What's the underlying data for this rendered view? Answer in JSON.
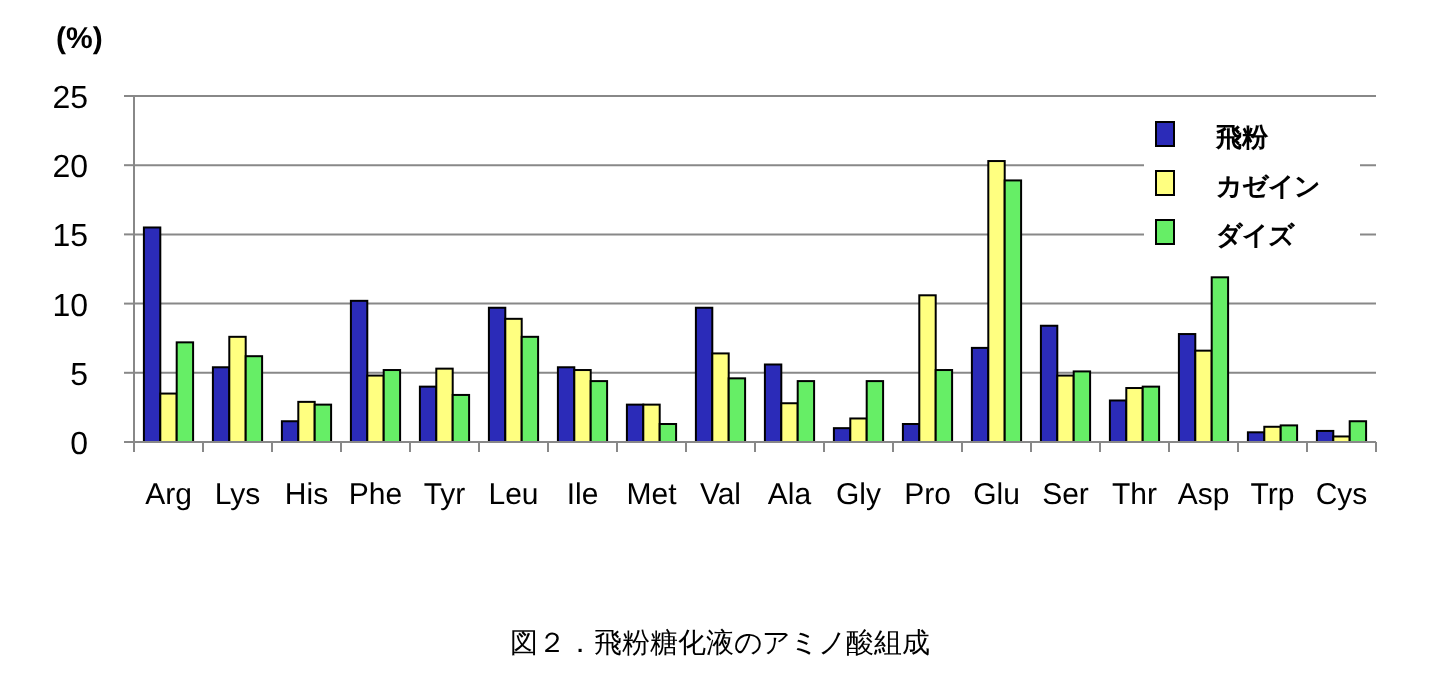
{
  "chart_data": {
    "type": "bar",
    "ylabel": "(%)",
    "annotations": [
      "図２．飛粉糖化液のアミノ酸組成"
    ],
    "categories": [
      "Arg",
      "Lys",
      "His",
      "Phe",
      "Tyr",
      "Leu",
      "Ile",
      "Met",
      "Val",
      "Ala",
      "Gly",
      "Pro",
      "Glu",
      "Ser",
      "Thr",
      "Asp",
      "Trp",
      "Cys"
    ],
    "series": [
      {
        "name": "飛粉",
        "color": "#2b2bb8",
        "values": [
          15.5,
          5.4,
          1.5,
          10.2,
          4.0,
          9.7,
          5.4,
          2.7,
          9.7,
          5.6,
          1.0,
          1.3,
          6.8,
          8.4,
          3.0,
          7.8,
          0.7,
          0.8
        ]
      },
      {
        "name": "カゼイン",
        "color": "#ffff80",
        "values": [
          3.5,
          7.6,
          2.9,
          4.8,
          5.3,
          8.9,
          5.2,
          2.7,
          6.4,
          2.8,
          1.7,
          10.6,
          20.3,
          4.8,
          3.9,
          6.6,
          1.1,
          0.4
        ]
      },
      {
        "name": "ダイズ",
        "color": "#66ee66",
        "values": [
          7.2,
          6.2,
          2.7,
          5.2,
          3.4,
          7.6,
          4.4,
          1.3,
          4.6,
          4.4,
          4.4,
          5.2,
          18.9,
          5.1,
          4.0,
          11.9,
          1.2,
          1.5
        ]
      }
    ],
    "ylim": [
      0,
      25
    ],
    "yticks": [
      0,
      5,
      10,
      15,
      20,
      25
    ],
    "grid": "y",
    "legend": "top right"
  }
}
